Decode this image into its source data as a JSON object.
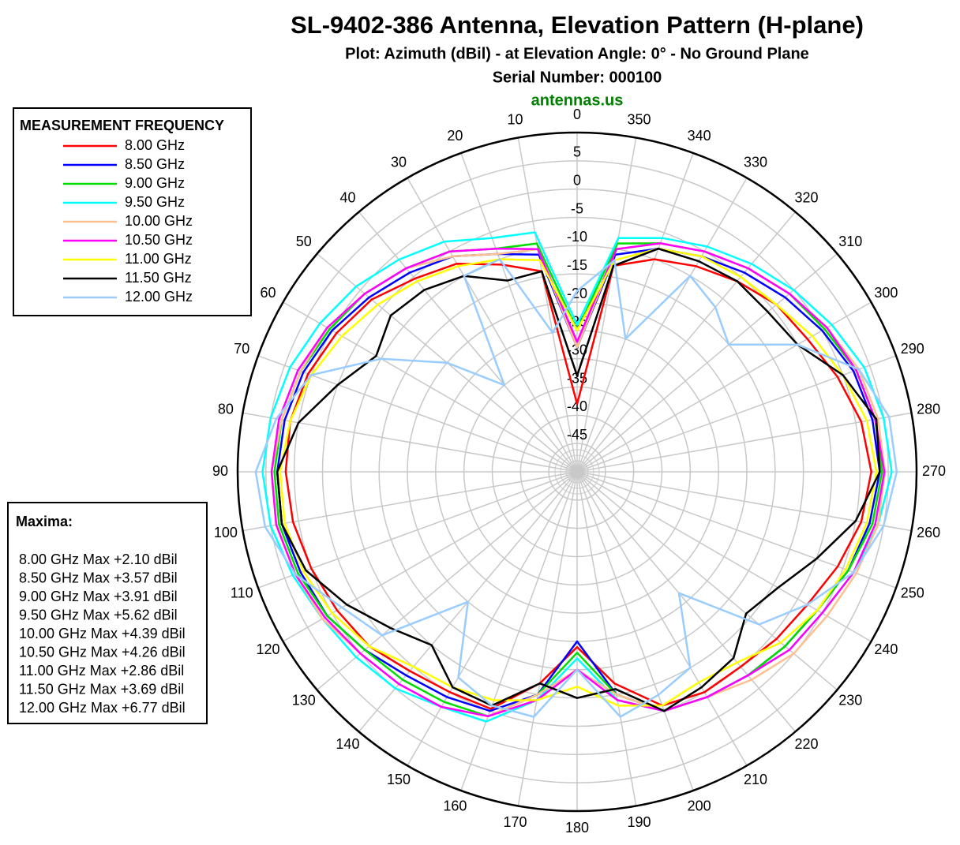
{
  "chart_data": {
    "type": "polar",
    "title": "SL-9402-386 Antenna, Elevation Pattern (H-plane)",
    "subtitle": "Plot:  Azimuth (dBil)  -  at Elevation Angle: 0°  -  No Ground Plane",
    "serial": "Serial Number:  000100",
    "website": "antennas.us",
    "legend_title": "MEASUREMENT FREQUENCY",
    "rlim": [
      -50,
      10
    ],
    "rticks": [
      -45,
      -40,
      -35,
      -30,
      -25,
      -20,
      -15,
      -10,
      -5,
      0,
      5
    ],
    "thetaticks": [
      0,
      10,
      20,
      30,
      40,
      50,
      60,
      70,
      80,
      90,
      100,
      110,
      120,
      130,
      140,
      150,
      160,
      170,
      180,
      190,
      200,
      210,
      220,
      230,
      240,
      250,
      260,
      270,
      280,
      290,
      300,
      310,
      320,
      330,
      340,
      350
    ],
    "theta": [
      0,
      10,
      20,
      30,
      40,
      50,
      60,
      70,
      80,
      90,
      100,
      110,
      120,
      130,
      140,
      150,
      160,
      170,
      180,
      190,
      200,
      210,
      220,
      230,
      240,
      250,
      260,
      270,
      280,
      290,
      300,
      310,
      320,
      330,
      340,
      350
    ],
    "grid": true,
    "series": [
      {
        "name": "8.00 GHz",
        "color": "#ff0000",
        "values": [
          -38,
          -14,
          -11,
          -7.5,
          -5.4,
          -2.6,
          -0.9,
          0.6,
          1.5,
          1.5,
          1,
          0,
          -1,
          -2,
          -4,
          -5,
          -5.4,
          -12,
          -19,
          -12,
          -6,
          -5,
          -5,
          -4,
          -3,
          -1,
          1,
          2,
          1,
          -1,
          -3,
          -4,
          -6,
          -8,
          -10,
          -13
        ]
      },
      {
        "name": "8.50 GHz",
        "color": "#0000ff",
        "values": [
          -28,
          -11,
          -9,
          -6,
          -4,
          -2,
          0,
          1.5,
          2.5,
          3,
          3,
          2,
          1,
          -1,
          -3,
          -4,
          -5,
          -10,
          -20,
          -10,
          -5,
          -4,
          -3,
          -2,
          -1,
          1,
          2.5,
          3.5,
          3,
          2,
          0,
          -2,
          -4,
          -6,
          -8,
          -11
        ]
      },
      {
        "name": "9.00 GHz",
        "color": "#00dd00",
        "values": [
          -25,
          -9,
          -8,
          -5,
          -3,
          -1,
          0.5,
          2,
          3,
          3.5,
          3.5,
          2.5,
          1,
          -1,
          -2,
          -3,
          -4,
          -10,
          -18,
          -10,
          -5,
          -4,
          -3,
          -2,
          -1,
          1,
          3,
          3.9,
          3.5,
          2.5,
          0.5,
          -1,
          -3,
          -5,
          -7,
          -9
        ]
      },
      {
        "name": "9.50 GHz",
        "color": "#00ffff",
        "values": [
          -24,
          -7,
          -6,
          -3,
          -1,
          1,
          2.5,
          4,
          5,
          5.6,
          5,
          3.5,
          2,
          1,
          0,
          -2,
          -3,
          -9,
          -17,
          -9,
          -5,
          -4,
          -3,
          -1,
          0,
          2,
          4,
          5.6,
          5,
          4,
          2,
          0,
          -2,
          -4,
          -6,
          -8
        ]
      },
      {
        "name": "10.00 GHz",
        "color": "#ffc090",
        "values": [
          -28,
          -10,
          -9,
          -6,
          -3,
          -1,
          1,
          2,
          3,
          4,
          4,
          3,
          2,
          0,
          -1,
          -2,
          -4,
          -10,
          -15,
          -10,
          -5,
          -4,
          -2,
          0,
          1,
          2.5,
          4,
          4.4,
          4,
          3,
          1,
          -1,
          -3,
          -5,
          -7,
          -10
        ]
      },
      {
        "name": "10.50 GHz",
        "color": "#ff00ff",
        "values": [
          -27,
          -10,
          -8,
          -5,
          -3,
          -1,
          1,
          2.5,
          3.5,
          4,
          4,
          3,
          1.5,
          0,
          -1,
          -2,
          -4,
          -9,
          -15,
          -9,
          -5,
          -4,
          -3,
          -1,
          0,
          2,
          3.5,
          4.3,
          3.5,
          2.5,
          1,
          -1,
          -3,
          -5,
          -7,
          -10
        ]
      },
      {
        "name": "11.00 GHz",
        "color": "#ffff00",
        "values": [
          -25,
          -12,
          -10,
          -8,
          -6,
          -4,
          -2,
          0,
          1.5,
          2.5,
          2.5,
          1.5,
          0,
          -2,
          -5,
          -6,
          -7,
          -9,
          -12,
          -8,
          -6,
          -7,
          -6,
          -3,
          -1,
          0.5,
          2,
          2.9,
          2,
          0,
          -2,
          -4,
          -5,
          -6,
          -8,
          -12
        ]
      },
      {
        "name": "11.50 GHz",
        "color": "#000000",
        "values": [
          -33,
          -14,
          -14,
          -10,
          -8,
          -7,
          -9,
          -5,
          0,
          3,
          3,
          1,
          -3,
          -7,
          -10,
          -6,
          -6,
          -12,
          -10,
          -11,
          -5,
          -6,
          -7,
          -11,
          -9,
          -5,
          0,
          3.5,
          3.7,
          0,
          -5,
          -6,
          -6,
          -7,
          -8,
          -13
        ]
      },
      {
        "name": "12.00 GHz",
        "color": "#99ccff",
        "values": [
          -18,
          -25,
          -10,
          -10,
          -30,
          -20,
          -10,
          0,
          4,
          6.8,
          6,
          3,
          -2,
          -5,
          -20,
          -8,
          -6,
          -6,
          -15,
          -6,
          -8,
          -10,
          -22,
          -8,
          -3,
          2,
          5,
          6.5,
          6,
          3,
          -5,
          -15,
          -12,
          -10,
          -25,
          -12
        ]
      }
    ],
    "maxima": {
      "title": "Maxima:",
      "lines": [
        "8.00 GHz Max +2.10 dBil",
        "8.50 GHz Max +3.57 dBil",
        "9.00 GHz Max +3.91 dBil",
        "9.50 GHz Max +5.62 dBil",
        "10.00 GHz Max +4.39 dBil",
        "10.50 GHz Max +4.26 dBil",
        "11.00 GHz Max +2.86 dBil",
        "11.50 GHz Max +3.69 dBil",
        "12.00 GHz Max +6.77 dBil"
      ]
    }
  }
}
